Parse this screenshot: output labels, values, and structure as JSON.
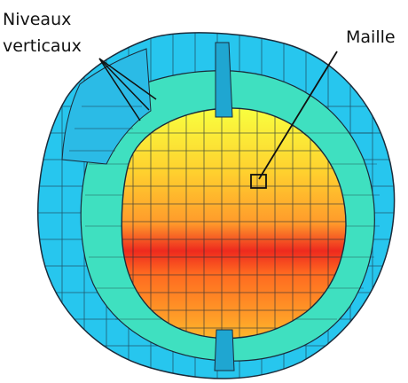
{
  "labels": {
    "niveaux_line1": "Niveaux",
    "niveaux_line2": "verticaux",
    "maille": "Maille"
  },
  "colors": {
    "outer_shell": "#27c6ee",
    "middle_shell": "#3fe0c0",
    "inner_core_top": "#ffff33",
    "inner_core_mid": "#ff9a2b",
    "inner_core_band": "#ee2a1e",
    "grid_lines": "#1b2b3a"
  }
}
